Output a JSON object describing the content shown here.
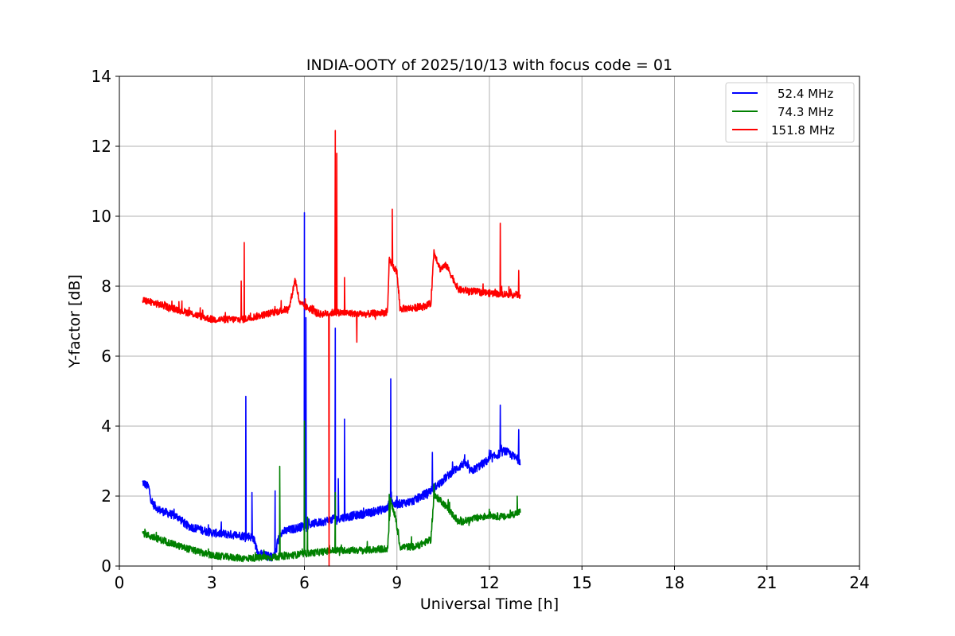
{
  "chart_data": {
    "type": "line",
    "title": "INDIA-OOTY of 2025/10/13 with focus code = 01",
    "xlabel": "Universal Time [h]",
    "ylabel": "Y-factor [dB]",
    "xlim": [
      0,
      24
    ],
    "ylim": [
      0,
      14
    ],
    "xticks": [
      0,
      3,
      6,
      9,
      12,
      15,
      18,
      21,
      24
    ],
    "yticks": [
      0,
      2,
      4,
      6,
      8,
      10,
      12,
      14
    ],
    "grid": true,
    "legend_position": "top-right",
    "series": [
      {
        "name": "52.4 MHz",
        "color": "#0000ff",
        "noise": 0.12,
        "baseline": [
          [
            0.75,
            2.4
          ],
          [
            0.95,
            2.25
          ],
          [
            1.05,
            1.8
          ],
          [
            1.3,
            1.6
          ],
          [
            1.9,
            1.4
          ],
          [
            2.2,
            1.15
          ],
          [
            3.0,
            0.95
          ],
          [
            3.6,
            0.9
          ],
          [
            4.2,
            0.85
          ],
          [
            4.35,
            0.8
          ],
          [
            4.5,
            0.35
          ],
          [
            5.0,
            0.25
          ],
          [
            5.1,
            0.5
          ],
          [
            5.2,
            0.95
          ],
          [
            6.0,
            1.15
          ],
          [
            7.0,
            1.35
          ],
          [
            8.0,
            1.5
          ],
          [
            8.7,
            1.65
          ],
          [
            8.8,
            2.0
          ],
          [
            8.9,
            1.75
          ],
          [
            9.5,
            1.85
          ],
          [
            10.0,
            2.1
          ],
          [
            10.3,
            2.3
          ],
          [
            10.8,
            2.7
          ],
          [
            11.2,
            2.95
          ],
          [
            11.4,
            2.7
          ],
          [
            12.0,
            3.05
          ],
          [
            12.5,
            3.3
          ],
          [
            13.0,
            3.0
          ]
        ],
        "spikes": [
          [
            4.1,
            4.85
          ],
          [
            4.3,
            2.1
          ],
          [
            5.05,
            2.15
          ],
          [
            6.0,
            10.1
          ],
          [
            6.05,
            7.1
          ],
          [
            7.0,
            6.8
          ],
          [
            7.1,
            2.5
          ],
          [
            7.3,
            4.2
          ],
          [
            8.8,
            5.35
          ],
          [
            10.15,
            3.25
          ],
          [
            12.35,
            4.6
          ],
          [
            12.95,
            3.9
          ]
        ]
      },
      {
        "name": "74.3 MHz",
        "color": "#008000",
        "noise": 0.1,
        "baseline": [
          [
            0.75,
            0.95
          ],
          [
            1.0,
            0.85
          ],
          [
            2.0,
            0.55
          ],
          [
            3.0,
            0.3
          ],
          [
            4.0,
            0.22
          ],
          [
            5.0,
            0.25
          ],
          [
            6.0,
            0.35
          ],
          [
            7.0,
            0.45
          ],
          [
            8.0,
            0.45
          ],
          [
            8.7,
            0.5
          ],
          [
            8.8,
            1.85
          ],
          [
            8.95,
            1.4
          ],
          [
            9.1,
            0.55
          ],
          [
            9.6,
            0.55
          ],
          [
            10.1,
            0.75
          ],
          [
            10.2,
            2.0
          ],
          [
            10.4,
            1.9
          ],
          [
            10.6,
            1.7
          ],
          [
            11.0,
            1.25
          ],
          [
            11.5,
            1.35
          ],
          [
            12.0,
            1.45
          ],
          [
            12.5,
            1.4
          ],
          [
            13.0,
            1.55
          ]
        ],
        "spikes": [
          [
            5.2,
            2.85
          ],
          [
            6.0,
            4.15
          ],
          [
            6.1,
            1.4
          ],
          [
            7.0,
            2.1
          ],
          [
            8.75,
            2.05
          ],
          [
            10.2,
            2.35
          ],
          [
            12.9,
            2.0
          ]
        ]
      },
      {
        "name": "151.8 MHz",
        "color": "#ff0000",
        "noise": 0.1,
        "baseline": [
          [
            0.75,
            7.6
          ],
          [
            1.0,
            7.55
          ],
          [
            2.0,
            7.3
          ],
          [
            3.0,
            7.05
          ],
          [
            4.0,
            7.05
          ],
          [
            5.0,
            7.25
          ],
          [
            5.5,
            7.35
          ],
          [
            5.7,
            8.2
          ],
          [
            5.85,
            7.5
          ],
          [
            6.5,
            7.2
          ],
          [
            7.0,
            7.25
          ],
          [
            8.0,
            7.2
          ],
          [
            8.7,
            7.25
          ],
          [
            8.75,
            8.75
          ],
          [
            9.0,
            8.4
          ],
          [
            9.1,
            7.35
          ],
          [
            9.8,
            7.4
          ],
          [
            10.1,
            7.5
          ],
          [
            10.2,
            9.0
          ],
          [
            10.4,
            8.5
          ],
          [
            10.6,
            8.6
          ],
          [
            11.0,
            7.9
          ],
          [
            12.0,
            7.8
          ],
          [
            13.0,
            7.75
          ]
        ],
        "spikes": [
          [
            3.95,
            8.15
          ],
          [
            4.05,
            9.25
          ],
          [
            6.8,
            0.0
          ],
          [
            7.0,
            12.45
          ],
          [
            7.05,
            11.8
          ],
          [
            7.3,
            8.25
          ],
          [
            7.7,
            6.4
          ],
          [
            8.85,
            10.2
          ],
          [
            12.35,
            9.8
          ],
          [
            12.95,
            8.45
          ]
        ]
      }
    ]
  }
}
